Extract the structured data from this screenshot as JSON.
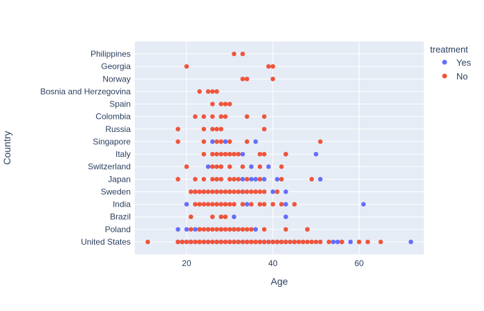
{
  "chart_data": {
    "type": "scatter",
    "xlabel": "Age",
    "ylabel": "Country",
    "xlim": [
      8,
      75
    ],
    "xticks": [
      20,
      40,
      60
    ],
    "grid": true,
    "legend_title": "treatment",
    "legend_position": "right",
    "categories": [
      "United States",
      "Poland",
      "Brazil",
      "India",
      "Sweden",
      "Japan",
      "Switzerland",
      "Italy",
      "Singapore",
      "Russia",
      "Colombia",
      "Spain",
      "Bosnia and Herzegovina",
      "Norway",
      "Georgia",
      "Philippines"
    ],
    "series": [
      {
        "name": "Yes",
        "color": "#636efa",
        "points": [
          [
            "United States",
            18
          ],
          [
            "United States",
            19
          ],
          [
            "United States",
            20
          ],
          [
            "United States",
            21
          ],
          [
            "United States",
            22
          ],
          [
            "United States",
            23
          ],
          [
            "United States",
            24
          ],
          [
            "United States",
            25
          ],
          [
            "United States",
            26
          ],
          [
            "United States",
            27
          ],
          [
            "United States",
            28
          ],
          [
            "United States",
            29
          ],
          [
            "United States",
            30
          ],
          [
            "United States",
            31
          ],
          [
            "United States",
            32
          ],
          [
            "United States",
            33
          ],
          [
            "United States",
            34
          ],
          [
            "United States",
            35
          ],
          [
            "United States",
            36
          ],
          [
            "United States",
            37
          ],
          [
            "United States",
            38
          ],
          [
            "United States",
            39
          ],
          [
            "United States",
            40
          ],
          [
            "United States",
            41
          ],
          [
            "United States",
            42
          ],
          [
            "United States",
            43
          ],
          [
            "United States",
            45
          ],
          [
            "United States",
            54
          ],
          [
            "United States",
            55
          ],
          [
            "United States",
            56
          ],
          [
            "United States",
            58
          ],
          [
            "United States",
            72
          ],
          [
            "Poland",
            18
          ],
          [
            "Poland",
            20
          ],
          [
            "Poland",
            22
          ],
          [
            "Poland",
            23
          ],
          [
            "Poland",
            25
          ],
          [
            "Poland",
            28
          ],
          [
            "Poland",
            31
          ],
          [
            "Poland",
            36
          ],
          [
            "Poland",
            48
          ],
          [
            "Brazil",
            31
          ],
          [
            "Brazil",
            43
          ],
          [
            "India",
            20
          ],
          [
            "India",
            34
          ],
          [
            "India",
            43
          ],
          [
            "India",
            61
          ],
          [
            "Sweden",
            22
          ],
          [
            "Sweden",
            24
          ],
          [
            "Sweden",
            27
          ],
          [
            "Sweden",
            30
          ],
          [
            "Sweden",
            33
          ],
          [
            "Sweden",
            40
          ],
          [
            "Sweden",
            43
          ],
          [
            "Japan",
            27
          ],
          [
            "Japan",
            33
          ],
          [
            "Japan",
            35
          ],
          [
            "Japan",
            36
          ],
          [
            "Japan",
            38
          ],
          [
            "Japan",
            41
          ],
          [
            "Japan",
            51
          ],
          [
            "Switzerland",
            25
          ],
          [
            "Switzerland",
            28
          ],
          [
            "Switzerland",
            35
          ],
          [
            "Switzerland",
            39
          ],
          [
            "Italy",
            33
          ],
          [
            "Italy",
            43
          ],
          [
            "Italy",
            50
          ],
          [
            "Singapore",
            26
          ],
          [
            "Singapore",
            29
          ],
          [
            "Singapore",
            36
          ]
        ]
      },
      {
        "name": "No",
        "color": "#ef553b",
        "points": [
          [
            "United States",
            11
          ],
          [
            "United States",
            18
          ],
          [
            "United States",
            19
          ],
          [
            "United States",
            20
          ],
          [
            "United States",
            21
          ],
          [
            "United States",
            22
          ],
          [
            "United States",
            23
          ],
          [
            "United States",
            24
          ],
          [
            "United States",
            25
          ],
          [
            "United States",
            26
          ],
          [
            "United States",
            27
          ],
          [
            "United States",
            28
          ],
          [
            "United States",
            29
          ],
          [
            "United States",
            30
          ],
          [
            "United States",
            31
          ],
          [
            "United States",
            32
          ],
          [
            "United States",
            33
          ],
          [
            "United States",
            34
          ],
          [
            "United States",
            35
          ],
          [
            "United States",
            36
          ],
          [
            "United States",
            37
          ],
          [
            "United States",
            38
          ],
          [
            "United States",
            39
          ],
          [
            "United States",
            40
          ],
          [
            "United States",
            41
          ],
          [
            "United States",
            42
          ],
          [
            "United States",
            43
          ],
          [
            "United States",
            44
          ],
          [
            "United States",
            45
          ],
          [
            "United States",
            46
          ],
          [
            "United States",
            47
          ],
          [
            "United States",
            48
          ],
          [
            "United States",
            49
          ],
          [
            "United States",
            50
          ],
          [
            "United States",
            51
          ],
          [
            "United States",
            53
          ],
          [
            "United States",
            56
          ],
          [
            "United States",
            60
          ],
          [
            "United States",
            62
          ],
          [
            "United States",
            65
          ],
          [
            "Poland",
            21
          ],
          [
            "Poland",
            23
          ],
          [
            "Poland",
            24
          ],
          [
            "Poland",
            25
          ],
          [
            "Poland",
            26
          ],
          [
            "Poland",
            27
          ],
          [
            "Poland",
            28
          ],
          [
            "Poland",
            29
          ],
          [
            "Poland",
            30
          ],
          [
            "Poland",
            31
          ],
          [
            "Poland",
            32
          ],
          [
            "Poland",
            33
          ],
          [
            "Poland",
            34
          ],
          [
            "Poland",
            35
          ],
          [
            "Poland",
            38
          ],
          [
            "Poland",
            43
          ],
          [
            "Poland",
            48
          ],
          [
            "Brazil",
            21
          ],
          [
            "Brazil",
            26
          ],
          [
            "Brazil",
            28
          ],
          [
            "Brazil",
            29
          ],
          [
            "India",
            22
          ],
          [
            "India",
            23
          ],
          [
            "India",
            24
          ],
          [
            "India",
            25
          ],
          [
            "India",
            26
          ],
          [
            "India",
            27
          ],
          [
            "India",
            28
          ],
          [
            "India",
            29
          ],
          [
            "India",
            30
          ],
          [
            "India",
            31
          ],
          [
            "India",
            33
          ],
          [
            "India",
            35
          ],
          [
            "India",
            37
          ],
          [
            "India",
            38
          ],
          [
            "India",
            40
          ],
          [
            "India",
            42
          ],
          [
            "India",
            45
          ],
          [
            "Sweden",
            21
          ],
          [
            "Sweden",
            22
          ],
          [
            "Sweden",
            23
          ],
          [
            "Sweden",
            24
          ],
          [
            "Sweden",
            25
          ],
          [
            "Sweden",
            26
          ],
          [
            "Sweden",
            27
          ],
          [
            "Sweden",
            28
          ],
          [
            "Sweden",
            29
          ],
          [
            "Sweden",
            30
          ],
          [
            "Sweden",
            31
          ],
          [
            "Sweden",
            32
          ],
          [
            "Sweden",
            33
          ],
          [
            "Sweden",
            34
          ],
          [
            "Sweden",
            35
          ],
          [
            "Sweden",
            36
          ],
          [
            "Sweden",
            37
          ],
          [
            "Sweden",
            38
          ],
          [
            "Sweden",
            41
          ],
          [
            "Japan",
            18
          ],
          [
            "Japan",
            22
          ],
          [
            "Japan",
            24
          ],
          [
            "Japan",
            26
          ],
          [
            "Japan",
            27
          ],
          [
            "Japan",
            28
          ],
          [
            "Japan",
            30
          ],
          [
            "Japan",
            31
          ],
          [
            "Japan",
            32
          ],
          [
            "Japan",
            34
          ],
          [
            "Japan",
            37
          ],
          [
            "Japan",
            42
          ],
          [
            "Japan",
            49
          ],
          [
            "Switzerland",
            20
          ],
          [
            "Switzerland",
            26
          ],
          [
            "Switzerland",
            27
          ],
          [
            "Switzerland",
            28
          ],
          [
            "Switzerland",
            30
          ],
          [
            "Switzerland",
            33
          ],
          [
            "Switzerland",
            37
          ],
          [
            "Switzerland",
            42
          ],
          [
            "Italy",
            24
          ],
          [
            "Italy",
            26
          ],
          [
            "Italy",
            27
          ],
          [
            "Italy",
            28
          ],
          [
            "Italy",
            29
          ],
          [
            "Italy",
            30
          ],
          [
            "Italy",
            31
          ],
          [
            "Italy",
            32
          ],
          [
            "Italy",
            37
          ],
          [
            "Italy",
            38
          ],
          [
            "Italy",
            43
          ],
          [
            "Singapore",
            18
          ],
          [
            "Singapore",
            24
          ],
          [
            "Singapore",
            27
          ],
          [
            "Singapore",
            28
          ],
          [
            "Singapore",
            30
          ],
          [
            "Singapore",
            34
          ],
          [
            "Singapore",
            51
          ],
          [
            "Russia",
            18
          ],
          [
            "Russia",
            24
          ],
          [
            "Russia",
            26
          ],
          [
            "Russia",
            27
          ],
          [
            "Russia",
            28
          ],
          [
            "Russia",
            38
          ],
          [
            "Colombia",
            22
          ],
          [
            "Colombia",
            24
          ],
          [
            "Colombia",
            26
          ],
          [
            "Colombia",
            28
          ],
          [
            "Colombia",
            29
          ],
          [
            "Colombia",
            34
          ],
          [
            "Colombia",
            38
          ],
          [
            "Spain",
            26
          ],
          [
            "Spain",
            28
          ],
          [
            "Spain",
            29
          ],
          [
            "Spain",
            30
          ],
          [
            "Bosnia and Herzegovina",
            23
          ],
          [
            "Bosnia and Herzegovina",
            25
          ],
          [
            "Bosnia and Herzegovina",
            26
          ],
          [
            "Bosnia and Herzegovina",
            27
          ],
          [
            "Norway",
            33
          ],
          [
            "Norway",
            34
          ],
          [
            "Norway",
            40
          ],
          [
            "Georgia",
            20
          ],
          [
            "Georgia",
            39
          ],
          [
            "Georgia",
            40
          ],
          [
            "Philippines",
            31
          ],
          [
            "Philippines",
            33
          ]
        ]
      }
    ]
  }
}
